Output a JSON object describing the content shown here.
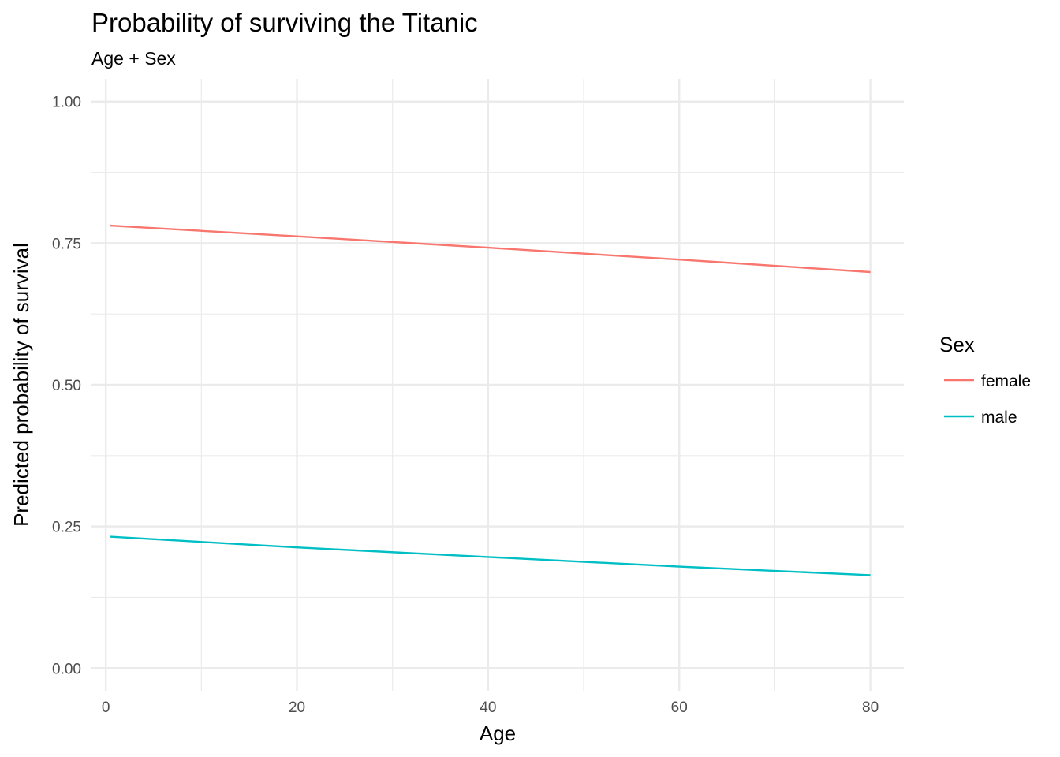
{
  "chart_data": {
    "type": "line",
    "title": "Probability of surviving the Titanic",
    "subtitle": "Age + Sex",
    "xlabel": "Age",
    "ylabel": "Predicted probability of survival",
    "xlim": [
      -1.5,
      83.5
    ],
    "ylim": [
      -0.04,
      1.04
    ],
    "x_ticks": [
      0,
      20,
      40,
      60,
      80
    ],
    "x_tick_labels": [
      "0",
      "20",
      "40",
      "60",
      "80"
    ],
    "x_minor_ticks": [
      10,
      30,
      50,
      70
    ],
    "y_ticks": [
      0,
      0.25,
      0.5,
      0.75,
      1.0
    ],
    "y_tick_labels": [
      "0.00",
      "0.25",
      "0.50",
      "0.75",
      "1.00"
    ],
    "y_minor_ticks": [
      0.125,
      0.375,
      0.625,
      0.875
    ],
    "grid": true,
    "legend": {
      "title": "Sex",
      "placement": "right"
    },
    "series": [
      {
        "name": "female",
        "color": "#F8766D",
        "x": [
          0.42,
          20,
          40,
          60,
          80
        ],
        "y": [
          0.781,
          0.762,
          0.742,
          0.721,
          0.699
        ]
      },
      {
        "name": "male",
        "color": "#00BFC4",
        "x": [
          0.42,
          20,
          40,
          60,
          80
        ],
        "y": [
          0.232,
          0.213,
          0.196,
          0.179,
          0.164
        ]
      }
    ]
  }
}
